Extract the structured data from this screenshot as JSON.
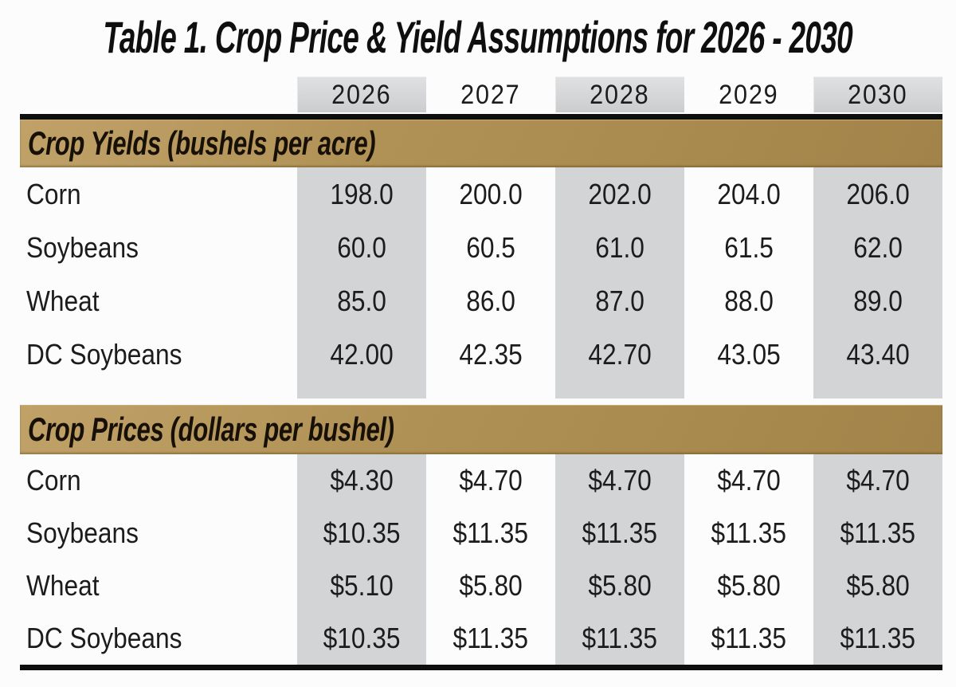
{
  "chart_data": {
    "type": "table",
    "title": "Table 1.  Crop Price & Yield Assumptions for 2026 - 2030",
    "columns": [
      "2026",
      "2027",
      "2028",
      "2029",
      "2030"
    ],
    "shaded_columns": [
      "2026",
      "2028",
      "2030"
    ],
    "sections": [
      {
        "header": "Crop Yields (bushels per acre)",
        "rows": [
          {
            "label": "Corn",
            "values": [
              "198.0",
              "200.0",
              "202.0",
              "204.0",
              "206.0"
            ]
          },
          {
            "label": "Soybeans",
            "values": [
              "60.0",
              "60.5",
              "61.0",
              "61.5",
              "62.0"
            ]
          },
          {
            "label": "Wheat",
            "values": [
              "85.0",
              "86.0",
              "87.0",
              "88.0",
              "89.0"
            ]
          },
          {
            "label": "DC Soybeans",
            "values": [
              "42.00",
              "42.35",
              "42.70",
              "43.05",
              "43.40"
            ]
          }
        ]
      },
      {
        "header": "Crop Prices (dollars per bushel)",
        "rows": [
          {
            "label": "Corn",
            "values": [
              "$4.30",
              "$4.70",
              "$4.70",
              "$4.70",
              "$4.70"
            ]
          },
          {
            "label": "Soybeans",
            "values": [
              "$10.35",
              "$11.35",
              "$11.35",
              "$11.35",
              "$11.35"
            ]
          },
          {
            "label": "Wheat",
            "values": [
              "$5.10",
              "$5.80",
              "$5.80",
              "$5.80",
              "$5.80"
            ]
          },
          {
            "label": "DC Soybeans",
            "values": [
              "$10.35",
              "$11.35",
              "$11.35",
              "$11.35",
              "$11.35"
            ]
          }
        ]
      }
    ]
  },
  "colors": {
    "section_band": "#ab8c50",
    "shaded_column": "#d3d4d6",
    "rule": "#0e0e0e",
    "text": "#1c1c1c"
  }
}
